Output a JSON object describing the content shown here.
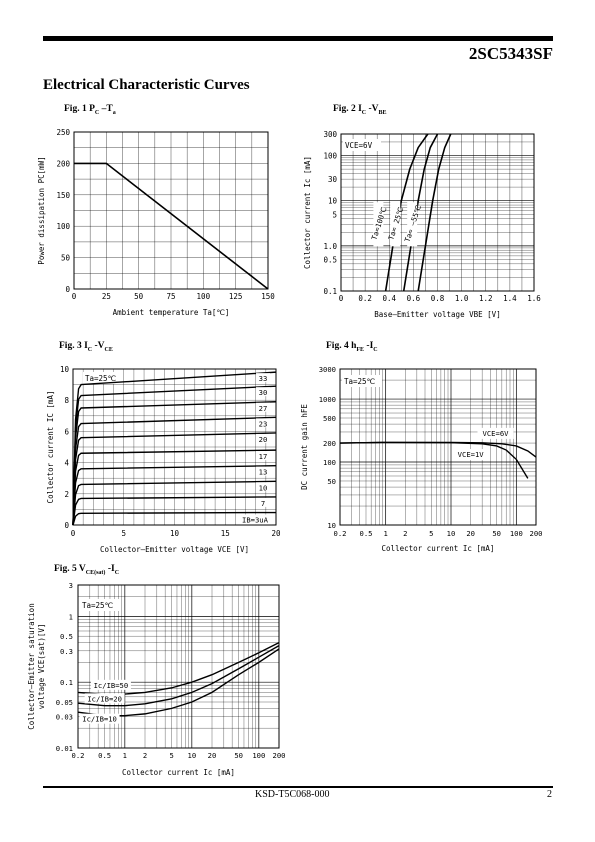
{
  "page": {
    "part_number": "2SC5343SF",
    "section_title": "Electrical Characteristic Curves",
    "doc_code": "KSD-T5C068-000",
    "page_number": "2"
  },
  "fig1": {
    "caption": "Fig. 1 P",
    "cap_sub1": "C",
    "cap_mid": " –T",
    "cap_sub2": "a",
    "xlabel": "Ambient temperature Ta[℃]",
    "ylabel": "Power dissipation PC[mW]",
    "xticks": [
      "0",
      "25",
      "50",
      "75",
      "100",
      "125",
      "150"
    ],
    "yticks": [
      "0",
      "50",
      "100",
      "150",
      "200",
      "250"
    ]
  },
  "fig2": {
    "caption": "Fig. 2 I",
    "cap_sub1": "C",
    "cap_mid": " -V",
    "cap_sub2": "BE",
    "xlabel": "Base–Emitter voltage VBE [V]",
    "ylabel": "Collector current Ic [mA]",
    "xticks": [
      "0",
      "0.2",
      "0.4",
      "0.6",
      "0.8",
      "1.0",
      "1.2",
      "1.4",
      "1.6"
    ],
    "yticks": [
      "0.1",
      "0.5",
      "1.0",
      "5",
      "10",
      "30",
      "100",
      "300"
    ],
    "annotation": "VCE=6V",
    "curve_labels": [
      "Ta=100℃",
      "Ta= 25℃",
      "Ta= –55℃"
    ]
  },
  "fig3": {
    "caption": "Fig. 3 I",
    "cap_sub1": "C",
    "cap_mid": " -V",
    "cap_sub2": "CE",
    "xlabel": "Collector–Emitter voltage VCE [V]",
    "ylabel": "Collector current IC [mA]",
    "xticks": [
      "0",
      "5",
      "10",
      "15",
      "20"
    ],
    "yticks": [
      "0",
      "2",
      "4",
      "6",
      "8",
      "10"
    ],
    "annotation": "Ta=25℃",
    "curve_labels": [
      "33",
      "30",
      "27",
      "23",
      "20",
      "17",
      "13",
      "10",
      "7",
      "IB=3uA"
    ]
  },
  "fig4": {
    "caption": "Fig. 4 h",
    "cap_sub1": "FE",
    "cap_mid": " -I",
    "cap_sub2": "C",
    "xlabel": "Collector current Ic [mA]",
    "ylabel": "DC current gain hFE",
    "xticks": [
      "0.2",
      "0.5",
      "1",
      "2",
      "5",
      "10",
      "20",
      "50",
      "100",
      "200"
    ],
    "yticks": [
      "10",
      "50",
      "100",
      "200",
      "500",
      "1000",
      "3000"
    ],
    "annotation": "Ta=25℃",
    "curve_labels": [
      "VCE=6V",
      "VCE=1V"
    ]
  },
  "fig5": {
    "caption": "Fig. 5 V",
    "cap_sub1": "CE(sat)",
    "cap_mid": " -I",
    "cap_sub2": "C",
    "xlabel": "Collector current Ic [mA]",
    "ylabel_line1": "Collector–Emitter saturation",
    "ylabel_line2": "voltage VCE(sat)[V]",
    "xticks": [
      "0.2",
      "0.5",
      "1",
      "2",
      "5",
      "10",
      "20",
      "50",
      "100",
      "200"
    ],
    "yticks": [
      "0.01",
      "0.03",
      "0.05",
      "0.1",
      "0.3",
      "0.5",
      "1",
      "3"
    ],
    "annotation": "Ta=25℃",
    "curve_labels": [
      "Ic/IB=50",
      "Ic/IB=20",
      "Ic/IB=10"
    ]
  },
  "chart_data": [
    {
      "type": "line",
      "title": "Fig. 1 PC –Ta",
      "xlabel": "Ambient temperature Ta[℃]",
      "ylabel": "Power dissipation PC[mW]",
      "xlim": [
        0,
        150
      ],
      "ylim": [
        0,
        250
      ],
      "grid": true,
      "series": [
        {
          "name": "",
          "x": [
            0,
            25,
            150
          ],
          "y": [
            200,
            200,
            0
          ]
        }
      ]
    },
    {
      "type": "line",
      "title": "Fig. 2 IC -VBE",
      "xlabel": "Base–Emitter voltage VBE [V]",
      "ylabel": "Collector current Ic [mA]",
      "xlim": [
        0,
        1.6
      ],
      "ylim": [
        0.1,
        300
      ],
      "yscale": "log",
      "grid": true,
      "series": [
        {
          "name": "Ta=100℃",
          "x": [
            0.37,
            0.43,
            0.5,
            0.57,
            0.64,
            0.72
          ],
          "y": [
            0.1,
            1,
            10,
            50,
            150,
            300
          ]
        },
        {
          "name": "Ta= 25℃",
          "x": [
            0.52,
            0.58,
            0.64,
            0.69,
            0.74,
            0.8
          ],
          "y": [
            0.1,
            1,
            10,
            50,
            150,
            300
          ]
        },
        {
          "name": "Ta= –55℃",
          "x": [
            0.64,
            0.7,
            0.76,
            0.81,
            0.86,
            0.91
          ],
          "y": [
            0.1,
            1,
            10,
            50,
            150,
            300
          ]
        }
      ]
    },
    {
      "type": "line",
      "title": "Fig. 3 IC -VCE",
      "xlabel": "Collector–Emitter voltage VCE [V]",
      "ylabel": "Collector current IC [mA]",
      "xlim": [
        0,
        20
      ],
      "ylim": [
        0,
        10
      ],
      "grid": true,
      "series": [
        {
          "name": "33",
          "x": [
            0.8,
            20
          ],
          "y": [
            9.0,
            9.8
          ]
        },
        {
          "name": "30",
          "x": [
            0.8,
            20
          ],
          "y": [
            8.3,
            8.9
          ]
        },
        {
          "name": "27",
          "x": [
            0.8,
            20
          ],
          "y": [
            7.5,
            7.9
          ]
        },
        {
          "name": "23",
          "x": [
            0.8,
            20
          ],
          "y": [
            6.5,
            6.9
          ]
        },
        {
          "name": "20",
          "x": [
            0.8,
            20
          ],
          "y": [
            5.6,
            5.9
          ]
        },
        {
          "name": "17",
          "x": [
            0.8,
            20
          ],
          "y": [
            4.6,
            4.8
          ]
        },
        {
          "name": "13",
          "x": [
            0.8,
            20
          ],
          "y": [
            3.6,
            3.8
          ]
        },
        {
          "name": "10",
          "x": [
            0.8,
            20
          ],
          "y": [
            2.6,
            2.8
          ]
        },
        {
          "name": "7",
          "x": [
            0.8,
            20
          ],
          "y": [
            1.7,
            1.8
          ]
        },
        {
          "name": "IB=3uA",
          "x": [
            0.8,
            20
          ],
          "y": [
            0.75,
            0.8
          ]
        }
      ]
    },
    {
      "type": "line",
      "title": "Fig. 4 hFE -IC",
      "xlabel": "Collector current Ic [mA]",
      "ylabel": "DC current gain hFE",
      "xlim": [
        0.2,
        200
      ],
      "ylim": [
        10,
        3000
      ],
      "xscale": "log",
      "yscale": "log",
      "grid": true,
      "series": [
        {
          "name": "VCE=6V",
          "x": [
            0.2,
            1,
            10,
            30,
            60,
            100,
            150,
            200
          ],
          "y": [
            200,
            205,
            205,
            202,
            195,
            180,
            150,
            120
          ]
        },
        {
          "name": "VCE=1V",
          "x": [
            0.2,
            1,
            10,
            30,
            50,
            70,
            100,
            150
          ],
          "y": [
            200,
            205,
            203,
            195,
            180,
            155,
            110,
            55
          ]
        }
      ]
    },
    {
      "type": "line",
      "title": "Fig. 5 VCE(sat) -IC",
      "xlabel": "Collector current Ic [mA]",
      "ylabel": "Collector–Emitter saturation voltage VCE(sat)[V]",
      "xlim": [
        0.2,
        200
      ],
      "ylim": [
        0.01,
        3
      ],
      "xscale": "log",
      "yscale": "log",
      "grid": true,
      "series": [
        {
          "name": "Ic/IB=50",
          "x": [
            0.2,
            0.5,
            1,
            2,
            5,
            10,
            20,
            50,
            100,
            200
          ],
          "y": [
            0.07,
            0.065,
            0.066,
            0.07,
            0.082,
            0.1,
            0.13,
            0.2,
            0.28,
            0.4
          ]
        },
        {
          "name": "Ic/IB=20",
          "x": [
            0.2,
            0.5,
            1,
            2,
            5,
            10,
            20,
            50,
            100,
            200
          ],
          "y": [
            0.048,
            0.044,
            0.044,
            0.047,
            0.056,
            0.07,
            0.095,
            0.16,
            0.24,
            0.36
          ]
        },
        {
          "name": "Ic/IB=10",
          "x": [
            0.2,
            0.5,
            1,
            2,
            5,
            10,
            20,
            50,
            100,
            200
          ],
          "y": [
            0.035,
            0.031,
            0.031,
            0.033,
            0.04,
            0.05,
            0.07,
            0.13,
            0.2,
            0.32
          ]
        }
      ]
    }
  ]
}
